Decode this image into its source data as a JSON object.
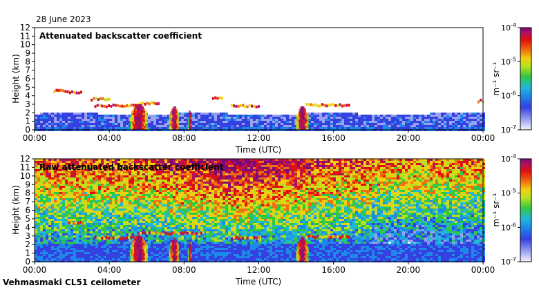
{
  "page": {
    "date": "28 June 2023",
    "footer": "Vehmasmaki CL51 ceilometer"
  },
  "colors": {
    "colormap": [
      "#f4f4ff",
      "#9aa2f0",
      "#3440e0",
      "#1e88e8",
      "#22b8d8",
      "#30c840",
      "#b8e020",
      "#f0d010",
      "#f07010",
      "#e01010",
      "#b01060",
      "#7a0a7a"
    ],
    "frame": "#000000",
    "background": "#ffffff"
  },
  "chart_data": [
    {
      "type": "heatmap",
      "title": "Attenuated backscatter coefficient",
      "xlabel": "Time (UTC)",
      "ylabel": "Height (km)",
      "x_ticks": [
        "00:00",
        "04:00",
        "08:00",
        "12:00",
        "16:00",
        "20:00",
        "00:00"
      ],
      "x_range_hours": [
        0,
        24
      ],
      "y_ticks": [
        0,
        1,
        2,
        3,
        4,
        5,
        6,
        7,
        8,
        9,
        10,
        11,
        12
      ],
      "ylim": [
        0,
        12
      ],
      "colorbar": {
        "scale": "log",
        "range": [
          1e-07,
          0.0001
        ],
        "tick_exps": [
          "-7",
          "-6",
          "-5",
          "-4"
        ],
        "unit": "m⁻¹ sr⁻¹"
      },
      "boundary_layer_top_km": 2.0,
      "cloud_layers": [
        {
          "start_h": 1.0,
          "end_h": 1.5,
          "height_km": 4.6
        },
        {
          "start_h": 1.6,
          "end_h": 2.5,
          "height_km": 4.4
        },
        {
          "start_h": 3.0,
          "end_h": 4.0,
          "height_km": 3.6
        },
        {
          "start_h": 3.2,
          "end_h": 5.5,
          "height_km": 2.8
        },
        {
          "start_h": 5.5,
          "end_h": 6.6,
          "height_km": 3.1
        },
        {
          "start_h": 9.5,
          "end_h": 10.0,
          "height_km": 3.8
        },
        {
          "start_h": 10.5,
          "end_h": 12.0,
          "height_km": 2.8
        },
        {
          "start_h": 14.5,
          "end_h": 16.8,
          "height_km": 2.9
        },
        {
          "start_h": 23.7,
          "end_h": 24.0,
          "height_km": 3.4
        }
      ],
      "precipitation_shafts": [
        {
          "start_h": 5.1,
          "end_h": 6.0,
          "top_km": 2.9
        },
        {
          "start_h": 7.2,
          "end_h": 7.7,
          "top_km": 2.6
        },
        {
          "start_h": 8.2,
          "end_h": 8.4,
          "top_km": 2.2
        },
        {
          "start_h": 14.0,
          "end_h": 14.6,
          "top_km": 2.6
        }
      ]
    },
    {
      "type": "heatmap",
      "title": "Raw attenuated backscatter coefficient",
      "xlabel": "Time (UTC)",
      "ylabel": "Height (km)",
      "x_ticks": [
        "00:00",
        "04:00",
        "08:00",
        "12:00",
        "16:00",
        "20:00",
        "00:00"
      ],
      "x_range_hours": [
        0,
        24
      ],
      "y_ticks": [
        0,
        1,
        2,
        3,
        4,
        5,
        6,
        7,
        8,
        9,
        10,
        11,
        12
      ],
      "ylim": [
        0,
        12
      ],
      "colorbar": {
        "scale": "log",
        "range": [
          1e-07,
          0.0001
        ],
        "tick_exps": [
          "-7",
          "-6",
          "-5",
          "-4"
        ],
        "unit": "m⁻¹ sr⁻¹"
      },
      "noise_dominant": true,
      "cloud_layers": [
        {
          "start_h": 1.8,
          "end_h": 2.7,
          "height_km": 4.5
        },
        {
          "start_h": 3.2,
          "end_h": 5.5,
          "height_km": 2.8
        },
        {
          "start_h": 5.5,
          "end_h": 9.0,
          "height_km": 3.3
        },
        {
          "start_h": 10.5,
          "end_h": 12.0,
          "height_km": 2.8
        },
        {
          "start_h": 14.5,
          "end_h": 16.8,
          "height_km": 2.9
        }
      ],
      "precipitation_shafts": [
        {
          "start_h": 5.1,
          "end_h": 6.0,
          "top_km": 3.0
        },
        {
          "start_h": 7.2,
          "end_h": 7.7,
          "top_km": 2.6
        },
        {
          "start_h": 8.2,
          "end_h": 8.4,
          "top_km": 2.2
        },
        {
          "start_h": 14.0,
          "end_h": 14.6,
          "top_km": 2.8
        }
      ]
    }
  ]
}
